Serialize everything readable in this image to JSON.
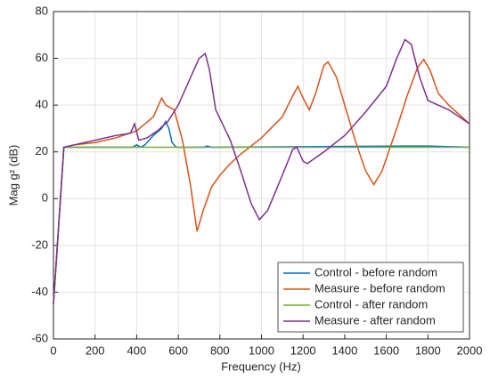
{
  "chart_data": {
    "type": "line",
    "xlabel": "Frequency (Hz)",
    "ylabel": "Mag g² (dB)",
    "xlim": [
      0,
      2000
    ],
    "xticks": [
      0,
      200,
      400,
      600,
      800,
      1000,
      1200,
      1400,
      1600,
      1800,
      2000
    ],
    "ylim": [
      -60,
      80
    ],
    "yticks": [
      -60,
      -40,
      -20,
      0,
      20,
      40,
      60,
      80
    ],
    "grid": true,
    "legend": "lower right",
    "series": [
      {
        "name": "Control - before random",
        "color": "#0072bd",
        "x": [
          0,
          50,
          380,
          400,
          420,
          440,
          480,
          520,
          540,
          555,
          570,
          590,
          720,
          740,
          760,
          1700,
          1800,
          2000
        ],
        "values": [
          -45,
          22,
          22,
          23,
          22,
          23,
          27,
          30,
          33,
          30,
          24,
          22,
          22,
          22.5,
          22,
          22.5,
          22.5,
          22
        ]
      },
      {
        "name": "Measure - before random",
        "color": "#d95319",
        "x": [
          0,
          50,
          100,
          200,
          300,
          400,
          480,
          520,
          540,
          580,
          620,
          660,
          690,
          720,
          760,
          800,
          850,
          900,
          1000,
          1100,
          1150,
          1175,
          1200,
          1230,
          1260,
          1300,
          1320,
          1360,
          1400,
          1450,
          1500,
          1540,
          1580,
          1650,
          1700,
          1750,
          1780,
          1810,
          1850,
          1900,
          2000
        ],
        "values": [
          -45,
          22,
          23,
          24,
          26,
          29,
          35,
          43,
          40,
          38,
          25,
          5,
          -14,
          -5,
          5,
          10,
          15,
          19,
          26,
          35,
          44,
          48,
          43,
          38,
          45,
          57,
          58.5,
          52,
          40,
          25,
          12,
          6,
          12,
          30,
          44,
          56,
          59.5,
          55,
          45,
          40,
          32
        ]
      },
      {
        "name": "Control - after random",
        "color": "#77ac30",
        "x": [
          0,
          50,
          100,
          500,
          1000,
          1500,
          2000
        ],
        "values": [
          -45,
          22,
          22,
          22,
          22,
          22,
          22
        ]
      },
      {
        "name": "Measure - after random",
        "color": "#7e2f8e",
        "x": [
          0,
          50,
          100,
          200,
          300,
          370,
          390,
          410,
          450,
          500,
          550,
          600,
          650,
          700,
          730,
          750,
          780,
          850,
          900,
          950,
          990,
          1030,
          1100,
          1150,
          1170,
          1200,
          1220,
          1300,
          1400,
          1500,
          1600,
          1650,
          1690,
          1720,
          1760,
          1800,
          1900,
          2000
        ],
        "values": [
          -45,
          22,
          23,
          25,
          27,
          28,
          32,
          25,
          26,
          29,
          33,
          40,
          50,
          60,
          62,
          55,
          38,
          25,
          12,
          -2,
          -9,
          -5,
          10,
          21,
          22,
          16,
          15,
          20,
          27,
          37,
          48,
          60,
          68,
          66,
          52,
          42,
          38,
          32
        ]
      }
    ]
  }
}
